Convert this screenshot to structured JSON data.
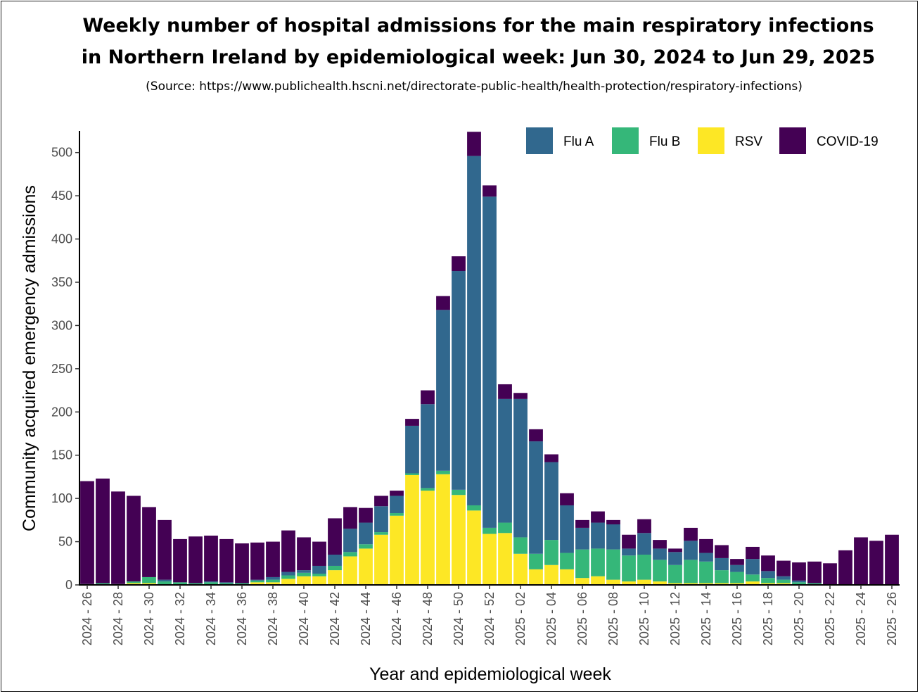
{
  "title_line1": "Weekly number of hospital admissions for the main respiratory infections",
  "title_line2": "in Northern Ireland by epidemiological week: Jun 30, 2024 to Jun 29, 2025",
  "source": "(Source: https://www.publichealth.hscni.net/directorate-public-health/health-protection/respiratory-infections)",
  "chart_data": {
    "type": "bar",
    "stacked": true,
    "xlabel": "Year and epidemiological week",
    "ylabel": "Community acquired emergency admissions",
    "ylim": [
      0,
      525
    ],
    "yticks": [
      0,
      50,
      100,
      150,
      200,
      250,
      300,
      350,
      400,
      450,
      500
    ],
    "grid": false,
    "legend_position": "top-right",
    "categories": [
      "2024 - 26",
      "2024 - 27",
      "2024 - 28",
      "2024 - 29",
      "2024 - 30",
      "2024 - 31",
      "2024 - 32",
      "2024 - 33",
      "2024 - 34",
      "2024 - 35",
      "2024 - 36",
      "2024 - 37",
      "2024 - 38",
      "2024 - 39",
      "2024 - 40",
      "2024 - 41",
      "2024 - 42",
      "2024 - 43",
      "2024 - 44",
      "2024 - 45",
      "2024 - 46",
      "2024 - 47",
      "2024 - 48",
      "2024 - 49",
      "2024 - 50",
      "2024 - 51",
      "2024 - 52",
      "2025 - 01",
      "2025 - 02",
      "2025 - 03",
      "2025 - 04",
      "2025 - 05",
      "2025 - 06",
      "2025 - 07",
      "2025 - 08",
      "2025 - 09",
      "2025 - 10",
      "2025 - 11",
      "2025 - 12",
      "2025 - 13",
      "2025 - 14",
      "2025 - 15",
      "2025 - 16",
      "2025 - 17",
      "2025 - 18",
      "2025 - 19",
      "2025 - 20",
      "2025 - 21",
      "2025 - 22",
      "2025 - 23",
      "2025 - 24",
      "2025 - 25",
      "2025 - 26"
    ],
    "tick_labels": [
      "2024 - 26",
      "",
      "2024 - 28",
      "",
      "2024 - 30",
      "",
      "2024 - 32",
      "",
      "2024 - 34",
      "",
      "2024 - 36",
      "",
      "2024 - 38",
      "",
      "2024 - 40",
      "",
      "2024 - 42",
      "",
      "2024 - 44",
      "",
      "2024 - 46",
      "",
      "2024 - 48",
      "",
      "2024 - 50",
      "",
      "2024 - 52",
      "",
      "2025 - 02",
      "",
      "2025 - 04",
      "",
      "2025 - 06",
      "",
      "2025 - 08",
      "",
      "2025 - 10",
      "",
      "2025 - 12",
      "",
      "2025 - 14",
      "",
      "2025 - 16",
      "",
      "2025 - 18",
      "",
      "2025 - 20",
      "",
      "2025 - 22",
      "",
      "2025 - 24",
      "",
      "2025 - 26"
    ],
    "series": [
      {
        "name": "RSV",
        "color": "#FDE725",
        "values": [
          0,
          0,
          0,
          2,
          2,
          0,
          0,
          0,
          0,
          0,
          0,
          3,
          3,
          7,
          10,
          10,
          17,
          33,
          42,
          58,
          80,
          127,
          109,
          128,
          104,
          86,
          59,
          60,
          36,
          18,
          23,
          18,
          8,
          10,
          6,
          4,
          6,
          4,
          2,
          2,
          2,
          2,
          2,
          4,
          2,
          2,
          0,
          0,
          0,
          0,
          0,
          0,
          0
        ]
      },
      {
        "name": "Flu B",
        "color": "#35B779",
        "values": [
          1,
          2,
          1,
          2,
          7,
          4,
          3,
          2,
          3,
          2,
          2,
          2,
          3,
          4,
          4,
          3,
          5,
          5,
          5,
          3,
          3,
          2,
          3,
          4,
          6,
          6,
          7,
          12,
          19,
          18,
          29,
          19,
          33,
          32,
          35,
          30,
          29,
          25,
          21,
          27,
          25,
          15,
          13,
          8,
          6,
          4,
          3,
          2,
          0,
          0,
          0,
          0,
          0
        ]
      },
      {
        "name": "Flu A",
        "color": "#31688E",
        "values": [
          0,
          0,
          0,
          0,
          0,
          2,
          0,
          0,
          1,
          1,
          0,
          1,
          3,
          4,
          3,
          9,
          13,
          27,
          25,
          30,
          20,
          55,
          97,
          186,
          253,
          404,
          383,
          143,
          160,
          130,
          90,
          55,
          25,
          30,
          29,
          8,
          25,
          13,
          15,
          22,
          10,
          14,
          8,
          18,
          8,
          4,
          2,
          0,
          0,
          0,
          0,
          0,
          0
        ]
      },
      {
        "name": "COVID-19",
        "color": "#440154",
        "values": [
          119,
          121,
          107,
          99,
          81,
          69,
          50,
          54,
          53,
          50,
          46,
          43,
          41,
          48,
          38,
          28,
          42,
          25,
          17,
          12,
          6,
          8,
          16,
          16,
          17,
          28,
          13,
          17,
          7,
          14,
          9,
          14,
          9,
          13,
          5,
          16,
          16,
          10,
          4,
          15,
          16,
          15,
          7,
          14,
          18,
          18,
          21,
          25,
          25,
          40,
          55,
          51,
          58
        ]
      }
    ]
  }
}
